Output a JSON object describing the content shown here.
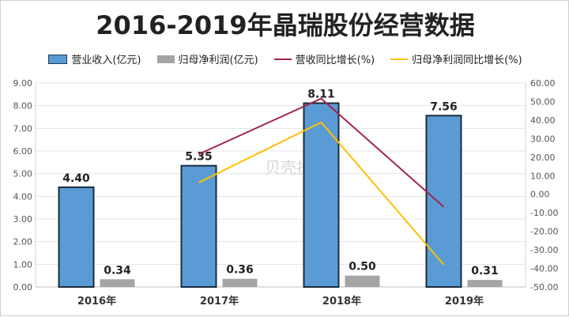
{
  "chart_data": {
    "type": "bar",
    "title": "2016-2019年晶瑞股份经营数据",
    "categories": [
      "2016年",
      "2017年",
      "2018年",
      "2019年"
    ],
    "series": [
      {
        "name": "营业收入(亿元)",
        "kind": "bar",
        "axis": "left",
        "color": "#5b9bd5",
        "values": [
          4.4,
          5.35,
          8.11,
          7.56
        ],
        "labels": [
          "4.40",
          "5.35",
          "8.11",
          "7.56"
        ]
      },
      {
        "name": "归母净利润(亿元)",
        "kind": "bar",
        "axis": "left",
        "color": "#a5a5a5",
        "values": [
          0.34,
          0.36,
          0.5,
          0.31
        ],
        "labels": [
          "0.34",
          "0.36",
          "0.50",
          "0.31"
        ]
      },
      {
        "name": "营收同比增长(%)",
        "kind": "line",
        "axis": "right",
        "color": "#a0254d",
        "values": [
          null,
          21.6,
          51.6,
          -6.8
        ]
      },
      {
        "name": "归母净利润同比增长(%)",
        "kind": "line",
        "axis": "right",
        "color": "#ffc000",
        "values": [
          null,
          6.3,
          38.8,
          -38.0
        ]
      }
    ],
    "ylim_left": [
      0,
      9
    ],
    "ylim_right": [
      -50,
      60
    ],
    "yticks_left": [
      "0.00",
      "1.00",
      "2.00",
      "3.00",
      "4.00",
      "5.00",
      "6.00",
      "7.00",
      "8.00",
      "9.00"
    ],
    "yticks_right": [
      "-50.00",
      "-40.00",
      "-30.00",
      "-20.00",
      "-10.00",
      "0.00",
      "10.00",
      "20.00",
      "30.00",
      "40.00",
      "50.00",
      "60.00"
    ],
    "grid": true,
    "legend_position": "top"
  },
  "watermark": {
    "text": "贝壳投研"
  }
}
